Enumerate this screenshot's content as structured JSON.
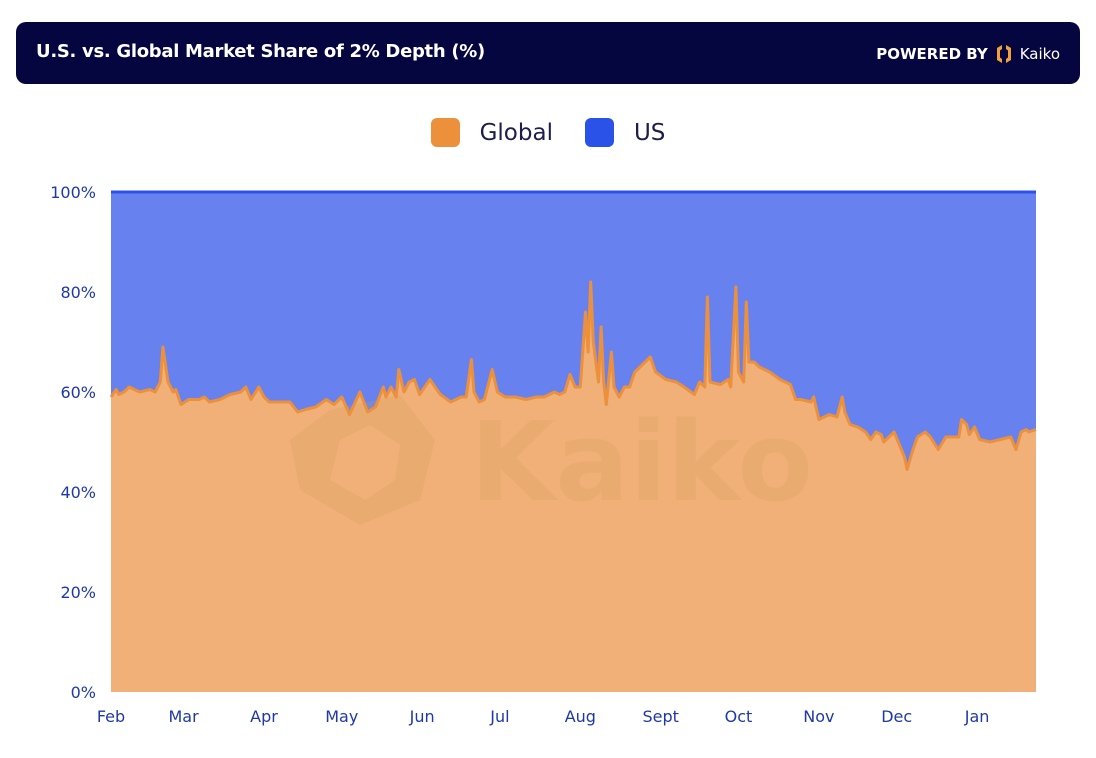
{
  "header": {
    "title": "U.S. vs. Global Market Share of 2% Depth (%)",
    "powered_by": "POWERED BY",
    "brand": "Kaiko"
  },
  "colors": {
    "header_bg": "#05053f",
    "global_fill": "#f0b077",
    "global_line": "#ec903b",
    "us_fill": "#6782ef",
    "us_line": "#2a52e8",
    "axis_text": "#1f38a8"
  },
  "chart_data": {
    "type": "area",
    "stacked": true,
    "title": "U.S. vs. Global Market Share of 2% Depth (%)",
    "legend": {
      "placement": "top-center",
      "entries": [
        "Global",
        "US"
      ]
    },
    "watermark": "Kaiko",
    "grid": false,
    "ylim": [
      0,
      100
    ],
    "y_ticks": [
      "0%",
      "20%",
      "40%",
      "60%",
      "80%",
      "100%"
    ],
    "x_ticks": [
      "Feb",
      "Mar",
      "Apr",
      "May",
      "Jun",
      "Jul",
      "Aug",
      "Sept",
      "Oct",
      "Nov",
      "Dec",
      "Jan"
    ],
    "x": [
      "Feb 1",
      "Feb 3",
      "Feb 4",
      "Feb 6",
      "Feb 8",
      "Feb 12",
      "Feb 16",
      "Feb 18",
      "Feb 20",
      "Feb 21",
      "Feb 23",
      "Feb 25",
      "Feb 26",
      "Feb 28",
      "Mar 3",
      "Mar 7",
      "Mar 9",
      "Mar 11",
      "Mar 15",
      "Mar 19",
      "Mar 23",
      "Mar 25",
      "Mar 27",
      "Mar 30",
      "Apr 1",
      "Apr 3",
      "Apr 7",
      "Apr 11",
      "Apr 14",
      "Apr 17",
      "Apr 21",
      "Apr 25",
      "Apr 28",
      "May 1",
      "May 4",
      "May 8",
      "May 11",
      "May 14",
      "May 17",
      "May 18",
      "May 20",
      "May 22",
      "May 23",
      "May 25",
      "May 27",
      "May 29",
      "May 31",
      "Jun 4",
      "Jun 8",
      "Jun 12",
      "Jun 16",
      "Jun 18",
      "Jun 20",
      "Jun 21",
      "Jun 23",
      "Jun 25",
      "Jun 28",
      "Jun 30",
      "Jul 3",
      "Jul 7",
      "Jul 11",
      "Jul 15",
      "Jul 18",
      "Jul 22",
      "Jul 24",
      "Jul 26",
      "Jul 28",
      "Jul 30",
      "Aug 1",
      "Aug 3",
      "Aug 4",
      "Aug 5",
      "Aug 6",
      "Aug 8",
      "Aug 9",
      "Aug 10",
      "Aug 11",
      "Aug 13",
      "Aug 14",
      "Aug 16",
      "Aug 18",
      "Aug 20",
      "Aug 22",
      "Aug 26",
      "Aug 28",
      "Aug 30",
      "Sep 3",
      "Sep 7",
      "Sep 10",
      "Sep 14",
      "Sep 16",
      "Sep 18",
      "Sep 19",
      "Sep 20",
      "Sep 24",
      "Sep 27",
      "Sep 28",
      "Sep 30",
      "Oct 1",
      "Oct 3",
      "Oct 4",
      "Oct 5",
      "Oct 7",
      "Oct 9",
      "Oct 13",
      "Oct 17",
      "Oct 21",
      "Oct 23",
      "Oct 25",
      "Oct 29",
      "Oct 30",
      "Nov 1",
      "Nov 3",
      "Nov 5",
      "Nov 8",
      "Nov 10",
      "Nov 11",
      "Nov 13",
      "Nov 16",
      "Nov 19",
      "Nov 21",
      "Nov 23",
      "Nov 25",
      "Nov 26",
      "Nov 28",
      "Nov 30",
      "Dec 2",
      "Dec 4",
      "Dec 5",
      "Dec 7",
      "Dec 9",
      "Dec 12",
      "Dec 14",
      "Dec 17",
      "Dec 20",
      "Dec 22",
      "Dec 25",
      "Dec 26",
      "Dec 28",
      "Dec 29",
      "Dec 31",
      "Jan 2",
      "Jan 6",
      "Jan 10",
      "Jan 14",
      "Jan 16",
      "Jan 18",
      "Jan 20",
      "Jan 21",
      "Jan 24"
    ],
    "series": [
      {
        "name": "Global",
        "values": [
          59,
          60.5,
          59.5,
          60,
          61,
          60,
          60.5,
          60,
          62,
          69,
          62,
          60,
          60.5,
          57.5,
          58.5,
          58.5,
          59,
          58,
          58.5,
          59.5,
          60,
          61,
          58.5,
          61,
          59,
          58,
          58,
          58,
          56,
          56.5,
          57,
          58.5,
          57.5,
          59,
          55.5,
          60,
          56,
          57,
          61,
          59,
          61,
          59,
          64.5,
          60,
          62,
          62.5,
          59.5,
          62.5,
          59.5,
          58,
          59,
          59,
          66.5,
          60,
          58,
          58.5,
          64.5,
          60,
          59,
          59,
          58.5,
          59,
          59,
          60,
          59.5,
          60,
          63.5,
          61,
          61,
          76,
          68,
          82,
          70,
          62,
          73,
          62,
          57.5,
          68,
          61,
          59,
          61,
          61,
          64,
          66,
          67,
          64,
          62.5,
          62,
          61,
          59.5,
          62,
          61,
          79,
          62,
          61.5,
          62.5,
          61,
          81,
          64,
          62,
          78,
          66,
          66,
          65,
          64,
          62.5,
          61.5,
          58.5,
          58.5,
          58,
          59,
          54.5,
          55,
          55.5,
          55,
          59,
          56,
          53.5,
          53,
          52,
          50.5,
          52,
          51.5,
          50,
          51,
          52,
          49.5,
          47,
          44.5,
          48,
          51,
          52,
          51,
          48.5,
          51,
          51,
          51,
          54.5,
          53.5,
          51.5,
          53,
          50.5,
          50,
          50.5,
          51,
          48.5,
          52,
          52.5,
          52,
          52.5
        ]
      },
      {
        "name": "US",
        "values": "remainder to 100%"
      }
    ]
  }
}
